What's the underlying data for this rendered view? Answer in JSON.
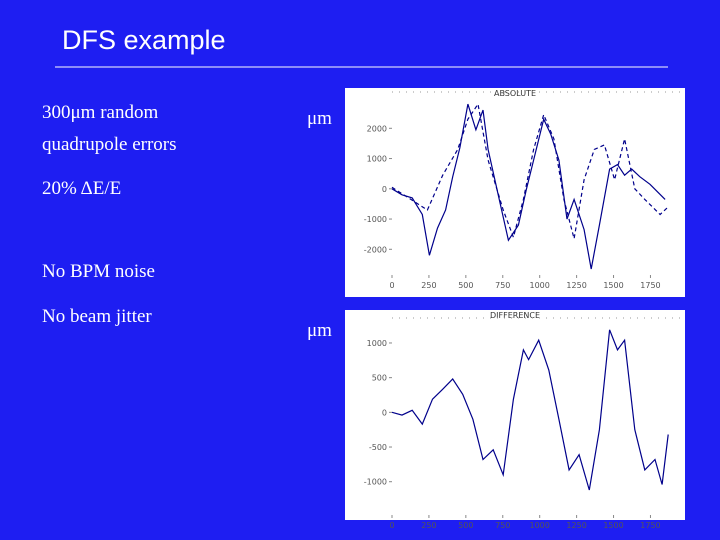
{
  "slide": {
    "title": "DFS example",
    "bullets": [
      "300μm random",
      "quadrupole errors",
      "20% ΔE/E",
      "No BPM noise",
      "No beam jitter"
    ],
    "unit_labels": [
      "μm",
      "μm"
    ]
  },
  "chart_data": [
    {
      "type": "line",
      "title": "ABSOLUTE",
      "xlim": [
        0,
        1950
      ],
      "xticks": [
        0,
        250,
        500,
        750,
        1000,
        1250,
        1500,
        1750
      ],
      "ylim": [
        -2850,
        3200
      ],
      "yticks": [
        2000,
        1000,
        0,
        -1000,
        -2000
      ],
      "series": [
        {
          "color": "#00008b",
          "dash": false,
          "x": [
            0,
            68,
            137,
            205,
            253,
            308,
            363,
            411,
            459,
            514,
            568,
            616,
            651,
            719,
            788,
            856,
            911,
            959,
            1027,
            1075,
            1130,
            1185,
            1233,
            1301,
            1349,
            1404,
            1473,
            1527,
            1575,
            1623,
            1678,
            1747,
            1849
          ],
          "values": [
            0,
            -200,
            -300,
            -850,
            -2200,
            -1300,
            -700,
            400,
            1350,
            2800,
            1950,
            2600,
            1300,
            -200,
            -1700,
            -1200,
            0,
            950,
            2300,
            1800,
            950,
            -1000,
            -350,
            -1350,
            -2650,
            -1200,
            650,
            800,
            450,
            650,
            400,
            150,
            -350
          ]
        },
        {
          "color": "#00008b",
          "dash": true,
          "x": [
            0,
            240,
            343,
            445,
            514,
            582,
            651,
            753,
            822,
            890,
            959,
            1027,
            1096,
            1164,
            1233,
            1301,
            1370,
            1438,
            1507,
            1575,
            1644,
            1712,
            1815,
            1870
          ],
          "values": [
            50,
            -700,
            450,
            1300,
            2300,
            2800,
            950,
            -700,
            -1600,
            -350,
            1300,
            2450,
            1650,
            -350,
            -1650,
            300,
            1300,
            1450,
            300,
            1650,
            0,
            -350,
            -850,
            -600
          ]
        }
      ]
    },
    {
      "type": "line",
      "title": "DIFFERENCE",
      "xlim": [
        0,
        1950
      ],
      "xticks": [
        0,
        250,
        500,
        750,
        1000,
        1250,
        1500,
        1750
      ],
      "ylim": [
        -1480,
        1360
      ],
      "yticks": [
        1000,
        500,
        0,
        -500,
        -1000
      ],
      "series": [
        {
          "color": "#00008b",
          "dash": false,
          "x": [
            0,
            68,
            137,
            205,
            274,
            342,
            411,
            479,
            548,
            616,
            685,
            753,
            822,
            890,
            925,
            993,
            1062,
            1130,
            1199,
            1267,
            1336,
            1404,
            1473,
            1527,
            1575,
            1644,
            1712,
            1781,
            1829,
            1870
          ],
          "values": [
            0,
            -40,
            30,
            -170,
            190,
            330,
            480,
            260,
            -100,
            -680,
            -540,
            -900,
            190,
            900,
            760,
            1040,
            610,
            -100,
            -830,
            -610,
            -1120,
            -250,
            1190,
            900,
            1040,
            -250,
            -830,
            -680,
            -1040,
            -320
          ]
        }
      ]
    }
  ]
}
